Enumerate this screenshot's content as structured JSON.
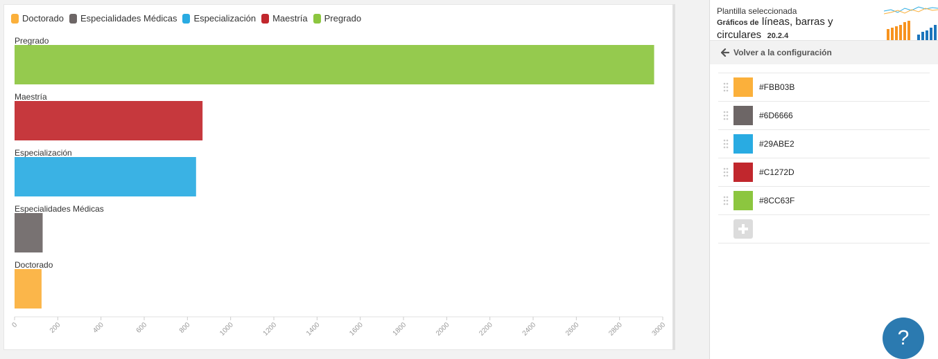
{
  "chart_data": {
    "type": "bar",
    "orientation": "horizontal",
    "categories": [
      "Pregrado",
      "Maestría",
      "Especialización",
      "Especialidades Médicas",
      "Doctorado"
    ],
    "values": [
      2960,
      870,
      840,
      130,
      125
    ],
    "bar_colors": [
      "#8CC63F",
      "#C1272D",
      "#29ABE2",
      "#6D6666",
      "#FBB03B"
    ],
    "xlim": [
      0,
      3000
    ],
    "xticks": [
      "0",
      "200",
      "400",
      "600",
      "800",
      "1000",
      "1200",
      "1400",
      "1600",
      "1800",
      "2000",
      "2200",
      "2400",
      "2600",
      "2800",
      "3000"
    ],
    "legend_position": "top-left",
    "legend": [
      {
        "label": "Doctorado",
        "color": "#FBB03B"
      },
      {
        "label": "Especialidades Médicas",
        "color": "#6D6666"
      },
      {
        "label": "Especialización",
        "color": "#29ABE2"
      },
      {
        "label": "Maestría",
        "color": "#C1272D"
      },
      {
        "label": "Pregrado",
        "color": "#8CC63F"
      }
    ],
    "grid": false
  },
  "panel": {
    "caption": "Plantilla seleccionada",
    "template_prefix": "Gráficos de",
    "template_title": "líneas, barras y circulares",
    "template_version": "20.2.4",
    "back_label": "Volver a la configuración",
    "colors": [
      "#FBB03B",
      "#6D6666",
      "#29ABE2",
      "#C1272D",
      "#8CC63F"
    ],
    "help_label": "?"
  }
}
